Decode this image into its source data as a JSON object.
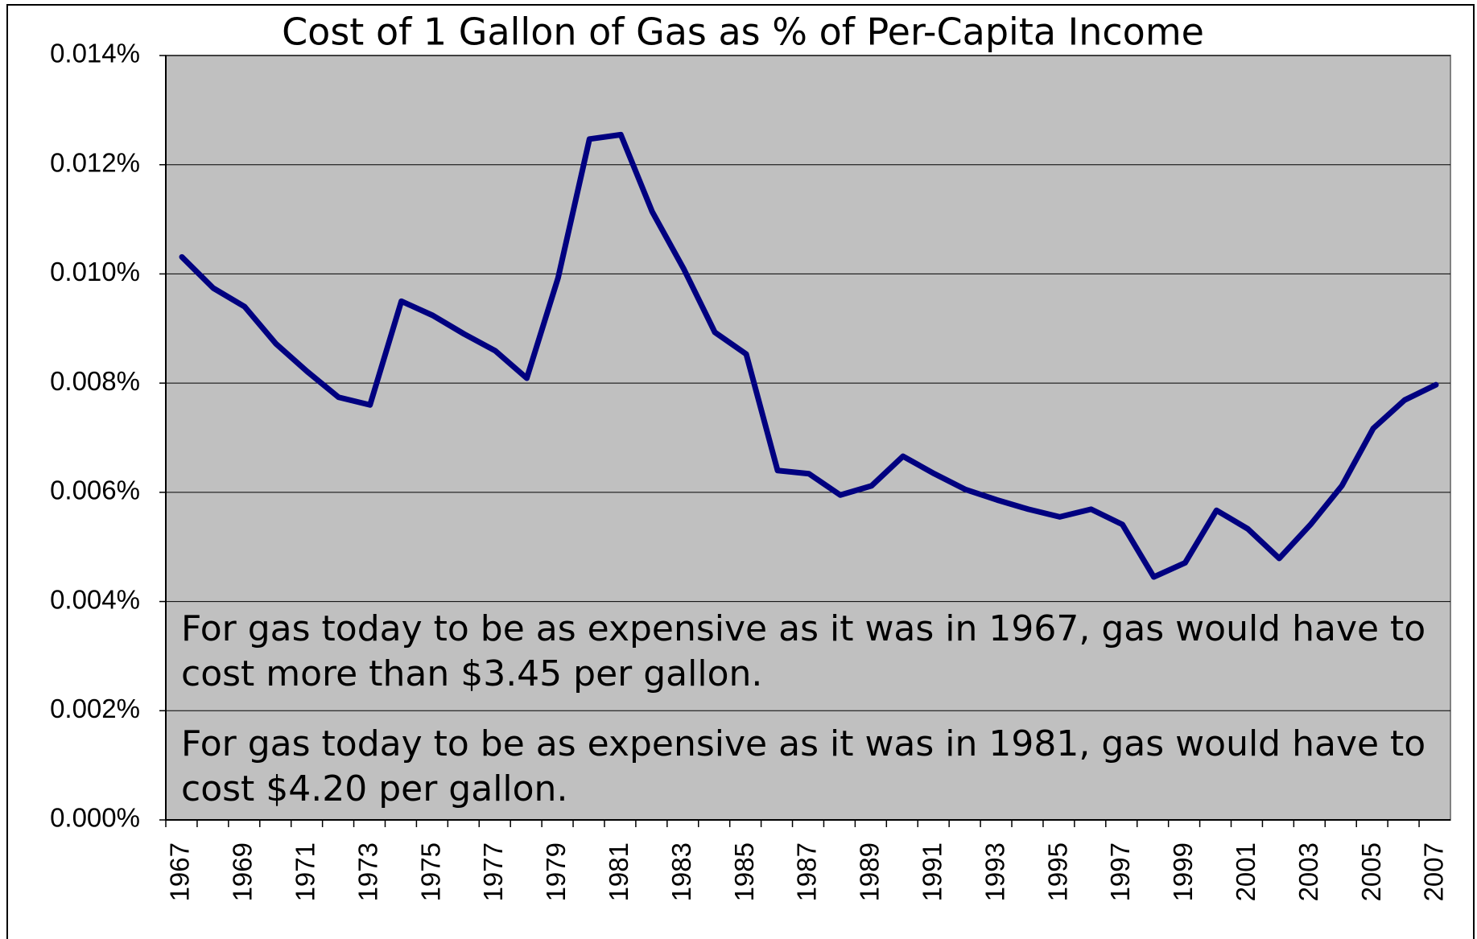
{
  "chart_data": {
    "type": "line",
    "title": "Cost of 1 Gallon of Gas as % of Per-Capita Income",
    "categories": [
      "1967",
      null,
      "1969",
      null,
      "1971",
      null,
      "1973",
      null,
      "1975",
      null,
      "1977",
      null,
      "1979",
      null,
      "1981",
      null,
      "1983",
      null,
      "1985",
      null,
      "1987",
      null,
      "1989",
      null,
      "1991",
      null,
      "1993",
      null,
      "1995",
      null,
      "1997",
      null,
      "1999",
      null,
      "2001",
      null,
      "2003",
      null,
      "2005",
      null,
      "2007"
    ],
    "series": [
      {
        "color": "#000080",
        "values": [
          0.01031,
          0.00974,
          0.0094,
          0.00872,
          0.00821,
          0.00774,
          0.0076,
          0.0095,
          0.00924,
          0.0089,
          0.00859,
          0.00809,
          0.00993,
          0.01247,
          0.01255,
          0.01114,
          0.0101,
          0.00893,
          0.00853,
          0.0064,
          0.00634,
          0.00595,
          0.00612,
          0.00666,
          0.00634,
          0.00605,
          0.00586,
          0.00569,
          0.00555,
          0.00569,
          0.00541,
          0.00445,
          0.00471,
          0.00567,
          0.00533,
          0.00479,
          0.00541,
          0.00612,
          0.00717,
          0.00769,
          0.00797
        ]
      }
    ],
    "ylim": [
      0,
      0.014
    ],
    "yticks": [
      {
        "value": 0,
        "label": "0.000%"
      },
      {
        "value": 0.002,
        "label": "0.002%"
      },
      {
        "value": 0.004,
        "label": "0.004%"
      },
      {
        "value": 0.006,
        "label": "0.006%"
      },
      {
        "value": 0.008,
        "label": "0.008%"
      },
      {
        "value": 0.01,
        "label": "0.010%"
      },
      {
        "value": 0.012,
        "label": "0.012%"
      },
      {
        "value": 0.014,
        "label": "0.014%"
      }
    ],
    "grid": true,
    "annotations": [
      {
        "lines": [
          "For gas today to be as expensive as it was in 1967, gas would have to",
          "cost more than $3.45 per gallon."
        ]
      },
      {
        "lines": [
          "For gas today to be as expensive as it was in 1981, gas would have to",
          "cost $4.20 per gallon."
        ]
      }
    ]
  }
}
